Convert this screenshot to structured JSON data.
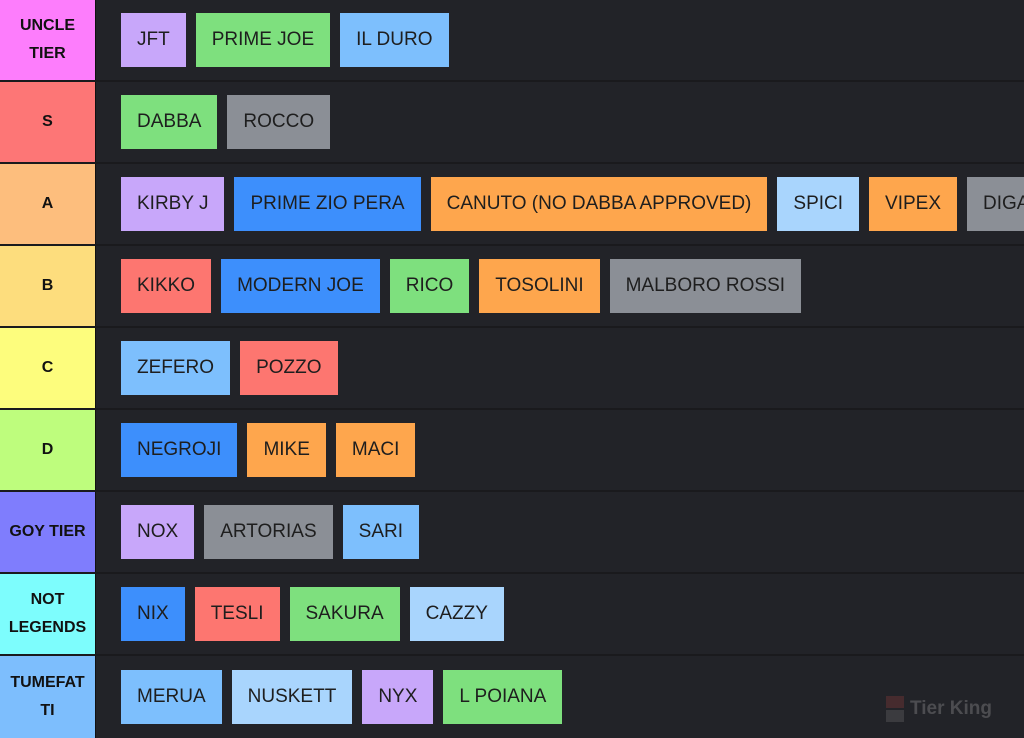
{
  "tiers": [
    {
      "label": "UNCLE TIER",
      "color": "#fd7dfc",
      "items": [
        {
          "text": "JFT",
          "color": "purple"
        },
        {
          "text": "PRIME JOE",
          "color": "green"
        },
        {
          "text": "IL DURO",
          "color": "sky"
        }
      ]
    },
    {
      "label": "S",
      "color": "#fd7676",
      "items": [
        {
          "text": "DABBA",
          "color": "green"
        },
        {
          "text": "ROCCO",
          "color": "gray"
        }
      ]
    },
    {
      "label": "A",
      "color": "#fdbe7d",
      "items": [
        {
          "text": "KIRBY J",
          "color": "purple"
        },
        {
          "text": "PRIME ZIO PERA",
          "color": "blue"
        },
        {
          "text": "CANUTO (NO DABBA APPROVED)",
          "color": "orange"
        },
        {
          "text": "SPICI",
          "color": "light"
        },
        {
          "text": "VIPEX",
          "color": "orange"
        },
        {
          "text": "DIGA",
          "color": "gray"
        }
      ]
    },
    {
      "label": "B",
      "color": "#fddd7d",
      "items": [
        {
          "text": "KIKKO",
          "color": "red"
        },
        {
          "text": "MODERN JOE",
          "color": "blue"
        },
        {
          "text": "RICO",
          "color": "green"
        },
        {
          "text": "TOSOLINI",
          "color": "orange"
        },
        {
          "text": "MALBORO ROSSI",
          "color": "gray"
        }
      ]
    },
    {
      "label": "C",
      "color": "#fdfd7d",
      "items": [
        {
          "text": "ZEFERO",
          "color": "sky"
        },
        {
          "text": "POZZO",
          "color": "red"
        }
      ]
    },
    {
      "label": "D",
      "color": "#befd7d",
      "items": [
        {
          "text": "NEGROJI",
          "color": "blue"
        },
        {
          "text": "MIKE",
          "color": "orange"
        },
        {
          "text": "MACI",
          "color": "orange"
        }
      ]
    },
    {
      "label": "GOY TIER",
      "color": "#7f7dfd",
      "items": [
        {
          "text": "NOX",
          "color": "purple"
        },
        {
          "text": "ARTORIAS",
          "color": "gray"
        },
        {
          "text": "SARI",
          "color": "sky"
        }
      ]
    },
    {
      "label": "NOT LEGENDS",
      "color": "#7dfdfd",
      "items": [
        {
          "text": "NIX",
          "color": "blue"
        },
        {
          "text": "TESLI",
          "color": "red"
        },
        {
          "text": "SAKURA",
          "color": "green"
        },
        {
          "text": "CAZZY",
          "color": "light"
        }
      ]
    },
    {
      "label": "TUMEFAT TI",
      "color": "#7dbefd",
      "items": [
        {
          "text": "MERUA",
          "color": "sky"
        },
        {
          "text": "NUSKETT",
          "color": "light"
        },
        {
          "text": "NYX",
          "color": "purple"
        },
        {
          "text": "L POIANA",
          "color": "green"
        }
      ]
    }
  ],
  "watermark": {
    "text": "Tier King",
    "icon": "tier-king-logo-icon"
  }
}
